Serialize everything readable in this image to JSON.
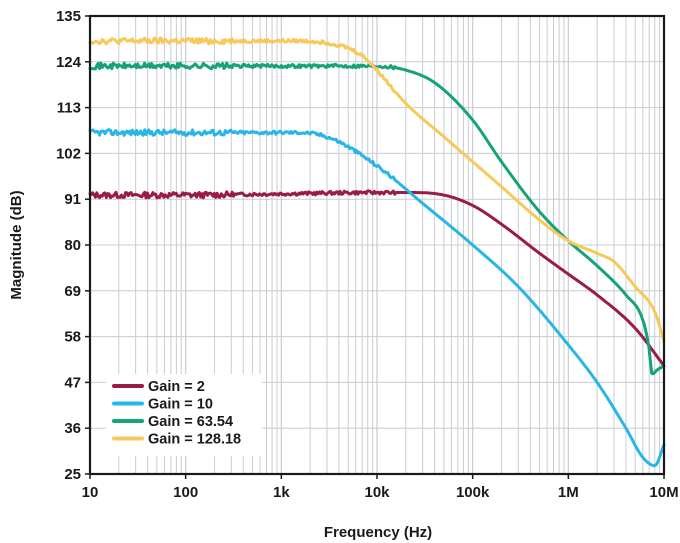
{
  "chart_data": {
    "type": "line",
    "title": "",
    "xlabel": "Frequency (Hz)",
    "ylabel": "Magnitude (dB)",
    "xscale": "log",
    "xlim": [
      10,
      10000000
    ],
    "ylim": [
      25,
      135
    ],
    "xticks": [
      {
        "value": 10,
        "label": "10"
      },
      {
        "value": 100,
        "label": "100"
      },
      {
        "value": 1000,
        "label": "1k"
      },
      {
        "value": 10000,
        "label": "10k"
      },
      {
        "value": 100000,
        "label": "100k"
      },
      {
        "value": 1000000,
        "label": "1M"
      },
      {
        "value": 10000000,
        "label": "10M"
      }
    ],
    "yticks": [
      25,
      36,
      47,
      58,
      69,
      80,
      91,
      102,
      113,
      124,
      135
    ],
    "grid": true,
    "legend_position": "bottom-left",
    "series": [
      {
        "name": "Gain = 2",
        "color": "#9b1b47",
        "x": [
          10,
          30,
          100,
          1000,
          10000,
          20000,
          50000,
          100000,
          200000,
          500000,
          1000000,
          2000000,
          5000000,
          10000000
        ],
        "y": [
          92,
          92,
          92,
          92.3,
          92.6,
          92.6,
          92,
          89.5,
          85,
          78,
          73,
          68,
          60,
          51
        ]
      },
      {
        "name": "Gain = 10",
        "color": "#29b6e6",
        "x": [
          10,
          100,
          1000,
          3000,
          10000,
          30000,
          100000,
          300000,
          1000000,
          2000000,
          4000000,
          6000000,
          8000000,
          10000000
        ],
        "y": [
          107,
          107,
          107,
          106,
          99,
          90,
          80,
          70,
          56,
          47,
          36,
          29,
          27,
          32
        ]
      },
      {
        "name": "Gain = 63.54",
        "color": "#17a27a",
        "x": [
          10,
          100,
          1000,
          10000,
          20000,
          40000,
          100000,
          200000,
          500000,
          1000000,
          2000000,
          4000000,
          6000000,
          7000000,
          7500000,
          8500000,
          10000000
        ],
        "y": [
          123,
          123,
          123,
          123,
          122,
          119,
          110,
          100,
          88,
          81,
          75,
          68,
          62,
          55,
          49,
          50,
          51
        ]
      },
      {
        "name": "Gain = 128.18",
        "color": "#f7c95a",
        "x": [
          10,
          100,
          1000,
          4000,
          7000,
          10000,
          20000,
          50000,
          100000,
          200000,
          500000,
          1000000,
          2000000,
          3000000,
          5000000,
          8000000,
          10000000
        ],
        "y": [
          129,
          129,
          129,
          128,
          125.5,
          122,
          114,
          106,
          100,
          94,
          86,
          81,
          78,
          76,
          70,
          64,
          57
        ]
      }
    ]
  }
}
